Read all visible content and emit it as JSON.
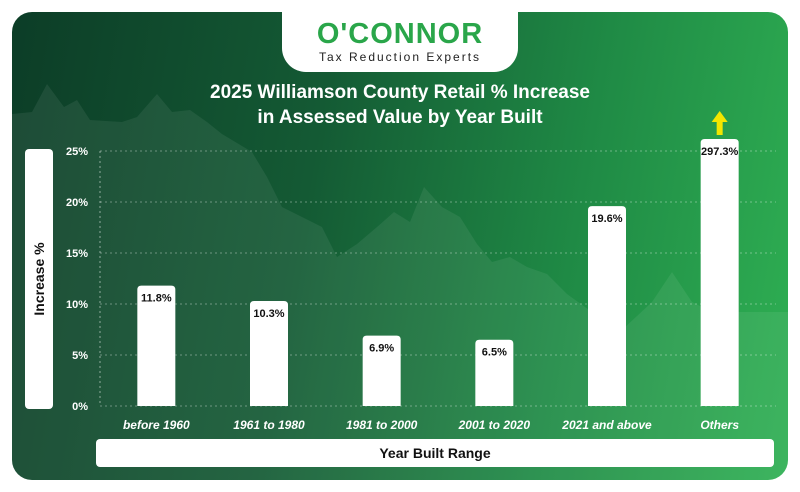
{
  "brand": {
    "name": "O'CONNOR",
    "tagline": "Tax Reduction Experts"
  },
  "colors": {
    "accent_green": "#2aa64a",
    "bar": "#ffffff",
    "arrow": "#f2e600"
  },
  "chart_data": {
    "type": "bar",
    "title_line1": "2025 Williamson County Retail % Increase",
    "title_line2": "in Assessed Value by Year Built",
    "xlabel": "Year Built Range",
    "ylabel": "Increase %",
    "ylim": [
      0,
      25
    ],
    "yticks": [
      0,
      5,
      10,
      15,
      20,
      25
    ],
    "ytick_labels": [
      "0%",
      "5%",
      "10%",
      "15%",
      "20%",
      "25%"
    ],
    "categories": [
      "before 1960",
      "1961 to 1980",
      "1981 to 2000",
      "2001 to 2020",
      "2021 and above",
      "Others"
    ],
    "values": [
      11.8,
      10.3,
      6.9,
      6.5,
      19.6,
      297.3
    ],
    "data_labels": [
      "11.8%",
      "10.3%",
      "6.9%",
      "6.5%",
      "19.6%",
      "297.3%"
    ],
    "clipped_indicator": "arrow-up on Others (value exceeds axis)",
    "grid": true
  }
}
